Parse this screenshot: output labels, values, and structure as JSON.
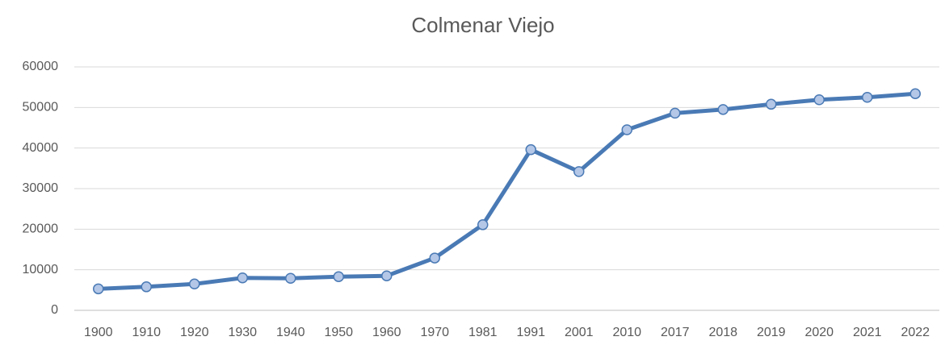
{
  "chart_data": {
    "type": "line",
    "title": "Colmenar Viejo",
    "categories": [
      "1900",
      "1910",
      "1920",
      "1930",
      "1940",
      "1950",
      "1960",
      "1970",
      "1981",
      "1991",
      "2001",
      "2010",
      "2017",
      "2018",
      "2019",
      "2020",
      "2021",
      "2022"
    ],
    "series": [
      {
        "name": "Colmenar Viejo",
        "color": "#4a7ab5",
        "marker_fill": "#b4c7e7",
        "values": [
          5300,
          5800,
          6500,
          8000,
          7900,
          8300,
          8500,
          12900,
          21100,
          39600,
          34200,
          44500,
          48600,
          49500,
          50800,
          51900,
          52500,
          53400
        ]
      }
    ],
    "ylim": [
      0,
      60000
    ],
    "yticks": [
      0,
      10000,
      20000,
      30000,
      40000,
      50000,
      60000
    ],
    "grid": true
  }
}
